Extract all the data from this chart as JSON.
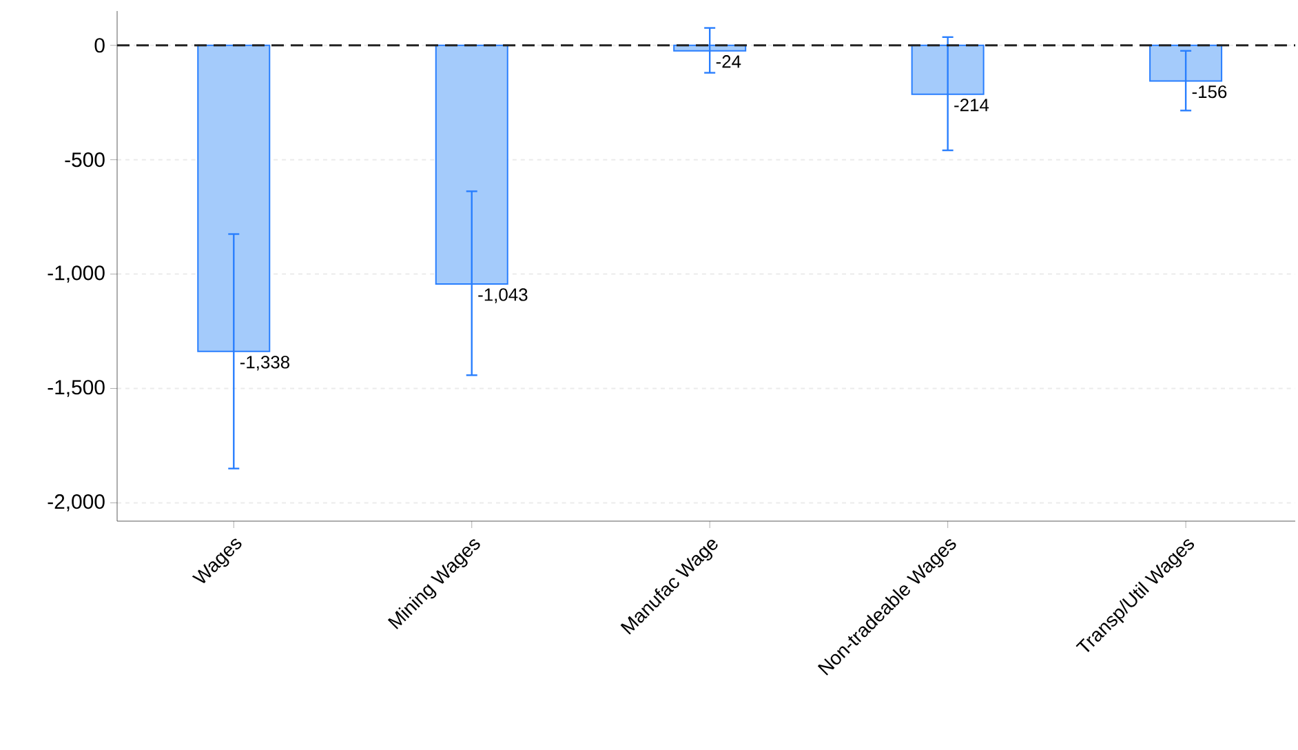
{
  "chart_data": {
    "type": "bar",
    "categories": [
      "Wages",
      "Mining Wages",
      "Manufac Wage",
      "Non-tradeable Wages",
      "Transp/Util Wages"
    ],
    "values": [
      -1338,
      -1043,
      -24,
      -214,
      -156
    ],
    "value_labels": [
      "-1,338",
      "-1,043",
      "-24",
      "-214",
      "-156"
    ],
    "errors": [
      [
        -1850,
        -825
      ],
      [
        -1442,
        -638
      ],
      [
        -120,
        76
      ],
      [
        -459,
        36
      ],
      [
        -285,
        -24
      ]
    ],
    "color": "#a4cbfb",
    "ylim": [
      -2080,
      150
    ],
    "yticks": [
      {
        "value": 0,
        "label": "0"
      },
      {
        "value": -500,
        "label": "-500"
      },
      {
        "value": -1000,
        "label": "-1,000"
      },
      {
        "value": -1500,
        "label": "-1,500"
      },
      {
        "value": -2000,
        "label": "-2,000"
      }
    ],
    "grid": "y",
    "ref_lines": [
      {
        "axis": "y",
        "value": 0,
        "color": "#222222",
        "line_style": "dashed"
      }
    ]
  }
}
